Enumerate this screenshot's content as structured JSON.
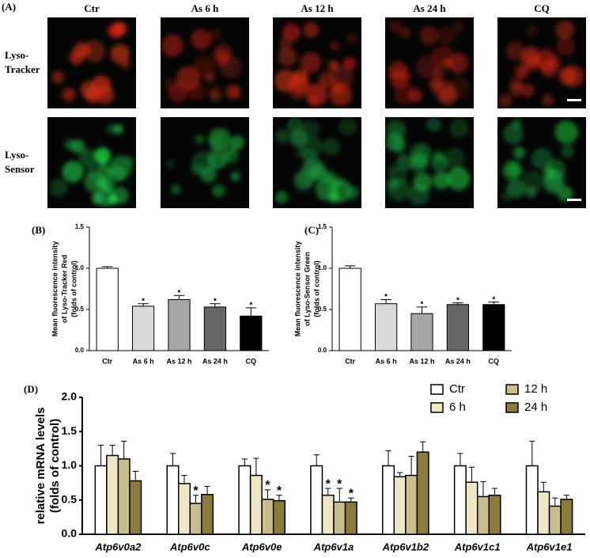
{
  "panel_a": {
    "label": "(A)",
    "columns": [
      "Ctr",
      "As 6 h",
      "As 12 h",
      "As 24 h",
      "CQ"
    ],
    "rows": [
      [
        "Lyso-",
        "Tracker"
      ],
      [
        "Lyso-",
        "Sensor"
      ]
    ]
  },
  "chart_data": [
    {
      "type": "bar",
      "label": "(B)",
      "y_label": [
        "Mean fluorescence intensity",
        "of Lyso-Tracker Red",
        "(folds of control)"
      ],
      "categories": [
        "Ctr",
        "As 6 h",
        "As 12 h",
        "As 24 h",
        "CQ"
      ],
      "values": [
        1.0,
        0.54,
        0.62,
        0.53,
        0.42
      ],
      "errors": [
        0.02,
        0.03,
        0.05,
        0.04,
        0.1
      ],
      "colors": [
        "#ffffff",
        "#d9d9d9",
        "#a6a6a6",
        "#666666",
        "#000000"
      ],
      "annotations": [
        null,
        "*",
        "*",
        "*",
        "*"
      ],
      "ylim": [
        0,
        1.5
      ],
      "yticks": [
        {
          "value": 0,
          "label": "0.0"
        },
        {
          "value": 0.5,
          "label": "0.5"
        },
        {
          "value": 1,
          "label": "1.0"
        },
        {
          "value": 1.5,
          "label": "1.5"
        }
      ]
    },
    {
      "type": "bar",
      "label": "(C)",
      "y_label": [
        "Mean fluorescence intensity",
        "of Lyso-Sensor Green",
        "(folds of control)"
      ],
      "categories": [
        "Ctr",
        "As 6 h",
        "As 12 h",
        "As 24 h",
        "CQ"
      ],
      "values": [
        1.0,
        0.57,
        0.45,
        0.56,
        0.56
      ],
      "errors": [
        0.03,
        0.05,
        0.08,
        0.02,
        0.03
      ],
      "colors": [
        "#ffffff",
        "#d9d9d9",
        "#a6a6a6",
        "#666666",
        "#000000"
      ],
      "annotations": [
        null,
        "*",
        "*",
        "*",
        "*"
      ],
      "ylim": [
        0,
        1.5
      ],
      "yticks": [
        {
          "value": 0,
          "label": "0.0"
        },
        {
          "value": 0.5,
          "label": "0.5"
        },
        {
          "value": 1,
          "label": "1.0"
        },
        {
          "value": 1.5,
          "label": "1.5"
        }
      ]
    },
    {
      "type": "grouped_bar",
      "label": "(D)",
      "y_label": [
        "relative mRNA levels",
        "(folds of control)"
      ],
      "categories": [
        "Atp6v0a2",
        "Atp6v0c",
        "Atp6v0e",
        "Atp6v1a",
        "Atp6v1b2",
        "Atp6v1c1",
        "Atp6v1e1"
      ],
      "series": [
        {
          "name": "Ctr",
          "color": "#ffffff",
          "values": [
            1,
            1,
            1,
            1,
            1,
            1,
            1
          ],
          "errors": [
            0.3,
            0.18,
            0.1,
            0.16,
            0.22,
            0.18,
            0.36
          ],
          "annotations": [
            null,
            null,
            null,
            null,
            null,
            null,
            null
          ]
        },
        {
          "name": "6 h",
          "color": "#efe6c6",
          "values": [
            1.15,
            0.74,
            0.86,
            0.57,
            0.84,
            0.76,
            0.62
          ],
          "errors": [
            0.15,
            0.12,
            0.25,
            0.1,
            0.06,
            0.22,
            0.14
          ],
          "annotations": [
            null,
            null,
            null,
            "*",
            null,
            null,
            null
          ]
        },
        {
          "name": "12 h",
          "color": "#c9bf8c",
          "values": [
            1.1,
            0.45,
            0.51,
            0.47,
            0.86,
            0.55,
            0.41
          ],
          "errors": [
            0.26,
            0.12,
            0.14,
            0.2,
            0.28,
            0.22,
            0.12
          ],
          "annotations": [
            null,
            "*",
            "*",
            "*",
            null,
            null,
            null
          ]
        },
        {
          "name": "24 h",
          "color": "#8a7a3c",
          "values": [
            0.78,
            0.58,
            0.49,
            0.47,
            1.2,
            0.57,
            0.51
          ],
          "errors": [
            0.14,
            0.12,
            0.08,
            0.06,
            0.15,
            0.1,
            0.06
          ],
          "annotations": [
            null,
            null,
            "*",
            "*",
            null,
            null,
            null
          ]
        }
      ],
      "ylim": [
        0,
        2
      ],
      "yticks": [
        {
          "value": 0,
          "label": "0.0"
        },
        {
          "value": 0.5,
          "label": "0.5"
        },
        {
          "value": 1,
          "label": "1.0"
        },
        {
          "value": 1.5,
          "label": "1.5"
        },
        {
          "value": 2,
          "label": "2.0"
        }
      ]
    }
  ]
}
